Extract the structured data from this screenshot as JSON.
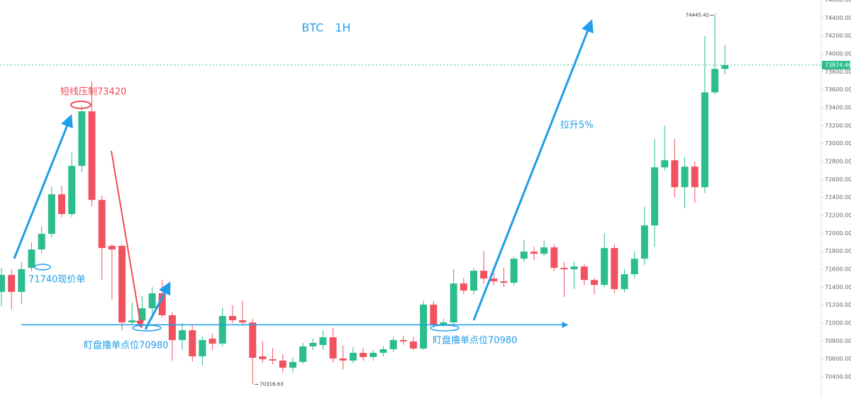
{
  "chart_data": {
    "type": "candlestick",
    "title": "BTC　1H",
    "up_color": "#2bbd8d",
    "down_color": "#f0525f",
    "ylim": [
      70187,
      74600
    ],
    "yticks": [
      {
        "value": 70400,
        "label": "70400.00"
      },
      {
        "value": 70600,
        "label": "70600.00"
      },
      {
        "value": 70800,
        "label": "70800.00"
      },
      {
        "value": 71000,
        "label": "71000.00"
      },
      {
        "value": 71200,
        "label": "71200.00"
      },
      {
        "value": 71400,
        "label": "71400.00"
      },
      {
        "value": 71600,
        "label": "71600.00"
      },
      {
        "value": 71800,
        "label": "71800.00"
      },
      {
        "value": 72000,
        "label": "72000.00"
      },
      {
        "value": 72200,
        "label": "72200.00"
      },
      {
        "value": 72400,
        "label": "72400.00"
      },
      {
        "value": 72600,
        "label": "72600.00"
      },
      {
        "value": 72800,
        "label": "72800.00"
      },
      {
        "value": 73000,
        "label": "73000.00"
      },
      {
        "value": 73200,
        "label": "73200.00"
      },
      {
        "value": 73400,
        "label": "73400.00"
      },
      {
        "value": 73600,
        "label": "73600.00"
      },
      {
        "value": 73800,
        "label": "73800.00"
      },
      {
        "value": 74000,
        "label": "74000.00"
      },
      {
        "value": 74200,
        "label": "74200.00"
      },
      {
        "value": 74400,
        "label": "74400.00"
      },
      {
        "value": 74600,
        "label": "74600.00"
      }
    ],
    "open": [
      71347,
      71536,
      71347,
      71615,
      71820,
      71994,
      72435,
      72215,
      72751,
      73359,
      72372,
      71860,
      71860,
      71007,
      71030,
      71165,
      71331,
      71087,
      70810,
      70920,
      70629,
      70826,
      70770,
      71079,
      71031,
      71007,
      70629,
      70597,
      70582,
      70502,
      70566,
      70740,
      70755,
      70841,
      70605,
      70582,
      70668,
      70621,
      70668,
      70708,
      70810,
      70795,
      70716,
      71205,
      70984,
      71007,
      71441,
      71362,
      71583,
      71496,
      71465,
      71449,
      71717,
      71796,
      71772,
      71843,
      71615,
      71599,
      71630,
      71480,
      71425,
      71836,
      71378,
      71544,
      71717,
      72088,
      72735,
      72814,
      72514,
      72743,
      72514,
      73571,
      73832
    ],
    "high": [
      71615,
      71600,
      71680,
      71900,
      72080,
      72520,
      72530,
      72900,
      73420,
      73690,
      72420,
      71880,
      71880,
      71230,
      71300,
      71400,
      71480,
      71120,
      71000,
      70980,
      70850,
      70880,
      71170,
      71200,
      71250,
      71050,
      70800,
      70720,
      70650,
      70620,
      70780,
      70830,
      70920,
      70950,
      70750,
      70730,
      70720,
      70700,
      70740,
      70850,
      70860,
      70850,
      71250,
      71250,
      71050,
      71600,
      71500,
      71610,
      71800,
      71560,
      71620,
      71740,
      71930,
      71850,
      71920,
      71880,
      71680,
      71680,
      71660,
      71500,
      72000,
      71880,
      71600,
      71800,
      72300,
      73050,
      73200,
      73050,
      72850,
      72800,
      74200,
      74445.42,
      74100
    ],
    "low": [
      71189,
      71150,
      71210,
      71580,
      71780,
      71950,
      72180,
      72180,
      72680,
      72300,
      71480,
      71260,
      70920,
      70990,
      70950,
      71100,
      71060,
      70580,
      70700,
      70570,
      70530,
      70700,
      70740,
      71000,
      70980,
      70316.63,
      70560,
      70540,
      70450,
      70450,
      70540,
      70700,
      70700,
      70560,
      70480,
      70550,
      70580,
      70580,
      70630,
      70680,
      70760,
      70700,
      70700,
      70950,
      70960,
      70970,
      71320,
      71320,
      71440,
      71420,
      71400,
      71420,
      71680,
      71700,
      71740,
      71580,
      71290,
      71380,
      71420,
      71320,
      71400,
      71330,
      71340,
      71500,
      71650,
      71850,
      72700,
      72400,
      72280,
      72340,
      72450,
      73550,
      73770
    ],
    "close": [
      71536,
      71347,
      71600,
      71820,
      71994,
      72435,
      72215,
      72751,
      73359,
      72372,
      71836,
      71820,
      71007,
      71030,
      71165,
      71331,
      71087,
      70810,
      70920,
      70629,
      70810,
      70770,
      71079,
      71031,
      71007,
      70613,
      70597,
      70582,
      70502,
      70566,
      70740,
      70779,
      70841,
      70605,
      70582,
      70668,
      70621,
      70668,
      70708,
      70810,
      70795,
      70716,
      71205,
      70984,
      71007,
      71441,
      71362,
      71583,
      71496,
      71465,
      71449,
      71717,
      71796,
      71772,
      71843,
      71615,
      71599,
      71630,
      71480,
      71425,
      71836,
      71378,
      71544,
      71717,
      72088,
      72735,
      72814,
      72514,
      72743,
      72514,
      73571,
      73832,
      73874.46
    ],
    "last_price": 73874.46,
    "level": 70980,
    "annotations": [
      "短线压制73420",
      "71740现价单",
      "盯盘撸单点位70980",
      "盯盘撸单点位70980",
      "拉升5%"
    ]
  }
}
